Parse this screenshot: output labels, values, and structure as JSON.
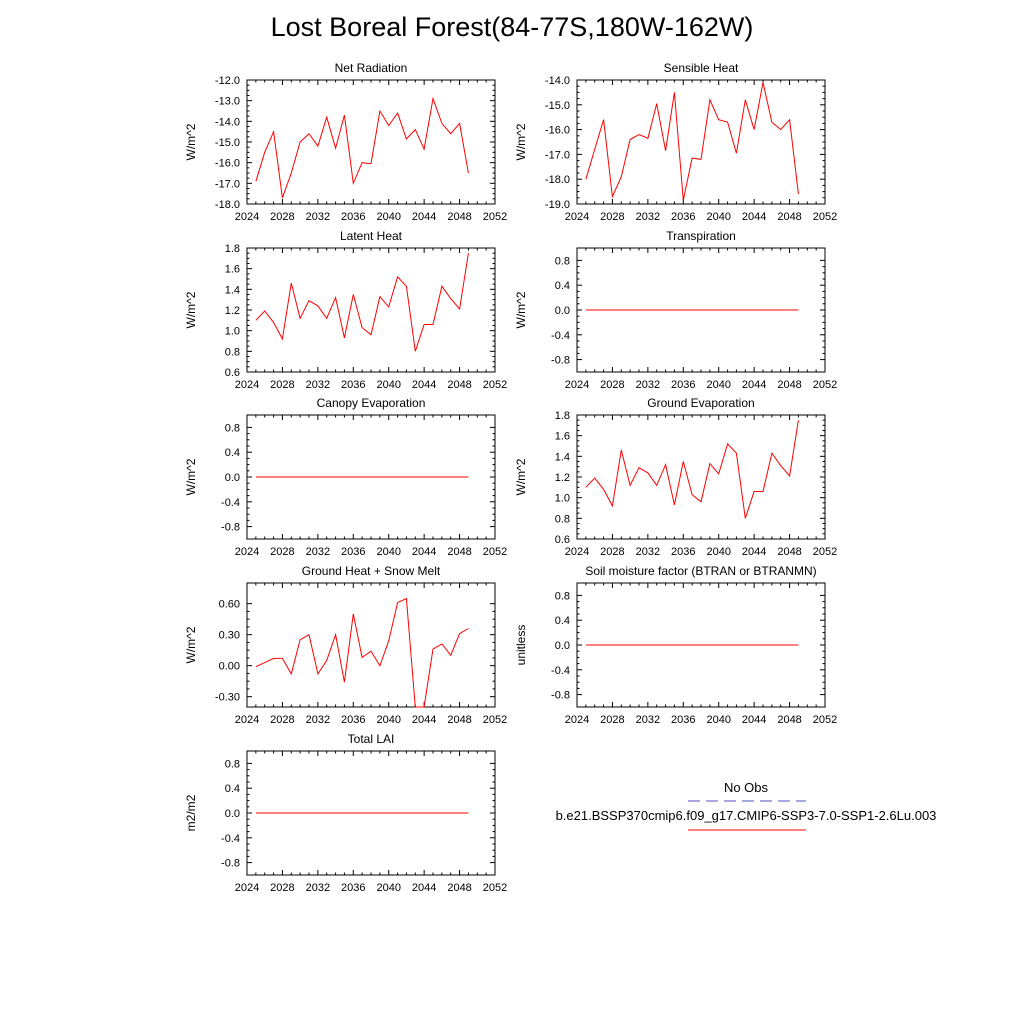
{
  "figure": {
    "title": "Lost Boreal Forest(84-77S,180W-162W)"
  },
  "legend": {
    "obs_label": "No Obs",
    "case_label": "b.e21.BSSP370cmip6.f09_g17.CMIP6-SSP3-7.0-SSP1-2.6Lu.003",
    "obs_color": "#5050c0",
    "case_color": "#ff0000"
  },
  "chart_data": [
    {
      "type": "line",
      "title": "Net Radiation",
      "ylabel": "W/m^2",
      "xlim": [
        2024,
        2052
      ],
      "xticks": [
        2024,
        2028,
        2032,
        2036,
        2040,
        2044,
        2048,
        2052
      ],
      "ylim": [
        -18.0,
        -12.0
      ],
      "yticks": [
        -18.0,
        -17.0,
        -16.0,
        -15.0,
        -14.0,
        -13.0,
        -12.0
      ],
      "ytick_labels": [
        "-18.0",
        "-17.0",
        "-16.0",
        "-15.0",
        "-14.0",
        "-13.0",
        "-12.0"
      ],
      "x": [
        2025,
        2026,
        2027,
        2028,
        2029,
        2030,
        2031,
        2032,
        2033,
        2034,
        2035,
        2036,
        2037,
        2038,
        2039,
        2040,
        2041,
        2042,
        2043,
        2044,
        2045,
        2046,
        2047,
        2048,
        2049
      ],
      "values": [
        -16.9,
        -15.5,
        -14.5,
        -17.7,
        -16.5,
        -15.0,
        -14.6,
        -15.2,
        -13.8,
        -15.3,
        -13.7,
        -17.0,
        -16.0,
        -16.05,
        -13.5,
        -14.2,
        -13.6,
        -14.85,
        -14.4,
        -15.35,
        -12.9,
        -14.1,
        -14.6,
        -14.1,
        -16.5
      ],
      "color": "#ff0000"
    },
    {
      "type": "line",
      "title": "Sensible Heat",
      "ylabel": "W/m^2",
      "xlim": [
        2024,
        2052
      ],
      "xticks": [
        2024,
        2028,
        2032,
        2036,
        2040,
        2044,
        2048,
        2052
      ],
      "ylim": [
        -19.0,
        -14.0
      ],
      "yticks": [
        -19.0,
        -18.0,
        -17.0,
        -16.0,
        -15.0,
        -14.0
      ],
      "ytick_labels": [
        "-19.0",
        "-18.0",
        "-17.0",
        "-16.0",
        "-15.0",
        "-14.0"
      ],
      "x": [
        2025,
        2026,
        2027,
        2028,
        2029,
        2030,
        2031,
        2032,
        2033,
        2034,
        2035,
        2036,
        2037,
        2038,
        2039,
        2040,
        2041,
        2042,
        2043,
        2044,
        2045,
        2046,
        2047,
        2048,
        2049
      ],
      "values": [
        -18.0,
        -16.8,
        -15.6,
        -18.7,
        -17.9,
        -16.4,
        -16.2,
        -16.35,
        -14.95,
        -16.85,
        -14.5,
        -18.85,
        -17.15,
        -17.2,
        -14.8,
        -15.6,
        -15.7,
        -16.95,
        -14.8,
        -16.0,
        -14.1,
        -15.7,
        -16.0,
        -15.6,
        -18.6
      ],
      "color": "#ff0000"
    },
    {
      "type": "line",
      "title": "Latent Heat",
      "ylabel": "W/m^2",
      "xlim": [
        2024,
        2052
      ],
      "xticks": [
        2024,
        2028,
        2032,
        2036,
        2040,
        2044,
        2048,
        2052
      ],
      "ylim": [
        0.6,
        1.8
      ],
      "yticks": [
        0.6,
        0.8,
        1.0,
        1.2,
        1.4,
        1.6,
        1.8
      ],
      "ytick_labels": [
        "0.6",
        "0.8",
        "1.0",
        "1.2",
        "1.4",
        "1.6",
        "1.8"
      ],
      "x": [
        2025,
        2026,
        2027,
        2028,
        2029,
        2030,
        2031,
        2032,
        2033,
        2034,
        2035,
        2036,
        2037,
        2038,
        2039,
        2040,
        2041,
        2042,
        2043,
        2044,
        2045,
        2046,
        2047,
        2048,
        2049
      ],
      "values": [
        1.1,
        1.19,
        1.08,
        0.92,
        1.46,
        1.12,
        1.29,
        1.24,
        1.12,
        1.32,
        0.93,
        1.35,
        1.03,
        0.96,
        1.33,
        1.23,
        1.52,
        1.43,
        0.8,
        1.06,
        1.06,
        1.43,
        1.31,
        1.21,
        1.75
      ],
      "color": "#ff0000"
    },
    {
      "type": "line",
      "title": "Transpiration",
      "ylabel": "W/m^2",
      "xlim": [
        2024,
        2052
      ],
      "xticks": [
        2024,
        2028,
        2032,
        2036,
        2040,
        2044,
        2048,
        2052
      ],
      "ylim": [
        -1.0,
        1.0
      ],
      "yticks": [
        -0.8,
        -0.4,
        0.0,
        0.4,
        0.8
      ],
      "ytick_labels": [
        "-0.8",
        "-0.4",
        "0.0",
        "0.4",
        "0.8"
      ],
      "x": [
        2025,
        2026,
        2027,
        2028,
        2029,
        2030,
        2031,
        2032,
        2033,
        2034,
        2035,
        2036,
        2037,
        2038,
        2039,
        2040,
        2041,
        2042,
        2043,
        2044,
        2045,
        2046,
        2047,
        2048,
        2049
      ],
      "values": [
        0,
        0,
        0,
        0,
        0,
        0,
        0,
        0,
        0,
        0,
        0,
        0,
        0,
        0,
        0,
        0,
        0,
        0,
        0,
        0,
        0,
        0,
        0,
        0,
        0
      ],
      "color": "#ff0000"
    },
    {
      "type": "line",
      "title": "Canopy Evaporation",
      "ylabel": "W/m^2",
      "xlim": [
        2024,
        2052
      ],
      "xticks": [
        2024,
        2028,
        2032,
        2036,
        2040,
        2044,
        2048,
        2052
      ],
      "ylim": [
        -1.0,
        1.0
      ],
      "yticks": [
        -0.8,
        -0.4,
        0.0,
        0.4,
        0.8
      ],
      "ytick_labels": [
        "-0.8",
        "-0.4",
        "0.0",
        "0.4",
        "0.8"
      ],
      "x": [
        2025,
        2026,
        2027,
        2028,
        2029,
        2030,
        2031,
        2032,
        2033,
        2034,
        2035,
        2036,
        2037,
        2038,
        2039,
        2040,
        2041,
        2042,
        2043,
        2044,
        2045,
        2046,
        2047,
        2048,
        2049
      ],
      "values": [
        0,
        0,
        0,
        0,
        0,
        0,
        0,
        0,
        0,
        0,
        0,
        0,
        0,
        0,
        0,
        0,
        0,
        0,
        0,
        0,
        0,
        0,
        0,
        0,
        0
      ],
      "color": "#ff0000"
    },
    {
      "type": "line",
      "title": "Ground Evaporation",
      "ylabel": "W/m^2",
      "xlim": [
        2024,
        2052
      ],
      "xticks": [
        2024,
        2028,
        2032,
        2036,
        2040,
        2044,
        2048,
        2052
      ],
      "ylim": [
        0.6,
        1.8
      ],
      "yticks": [
        0.6,
        0.8,
        1.0,
        1.2,
        1.4,
        1.6,
        1.8
      ],
      "ytick_labels": [
        "0.6",
        "0.8",
        "1.0",
        "1.2",
        "1.4",
        "1.6",
        "1.8"
      ],
      "x": [
        2025,
        2026,
        2027,
        2028,
        2029,
        2030,
        2031,
        2032,
        2033,
        2034,
        2035,
        2036,
        2037,
        2038,
        2039,
        2040,
        2041,
        2042,
        2043,
        2044,
        2045,
        2046,
        2047,
        2048,
        2049
      ],
      "values": [
        1.1,
        1.19,
        1.08,
        0.92,
        1.46,
        1.12,
        1.29,
        1.24,
        1.12,
        1.32,
        0.93,
        1.35,
        1.03,
        0.96,
        1.33,
        1.23,
        1.52,
        1.43,
        0.8,
        1.06,
        1.06,
        1.43,
        1.31,
        1.21,
        1.75
      ],
      "color": "#ff0000"
    },
    {
      "type": "line",
      "title": "Ground Heat + Snow Melt",
      "ylabel": "W/m^2",
      "xlim": [
        2024,
        2052
      ],
      "xticks": [
        2024,
        2028,
        2032,
        2036,
        2040,
        2044,
        2048,
        2052
      ],
      "ylim": [
        -0.4,
        0.8
      ],
      "yticks": [
        -0.3,
        0.0,
        0.3,
        0.6
      ],
      "ytick_labels": [
        "-0.30",
        "0.00",
        "0.30",
        "0.60"
      ],
      "x": [
        2025,
        2026,
        2027,
        2028,
        2029,
        2030,
        2031,
        2032,
        2033,
        2034,
        2035,
        2036,
        2037,
        2038,
        2039,
        2040,
        2041,
        2042,
        2043,
        2044,
        2045,
        2046,
        2047,
        2048,
        2049
      ],
      "values": [
        -0.01,
        0.03,
        0.07,
        0.07,
        -0.08,
        0.25,
        0.3,
        -0.08,
        0.05,
        0.3,
        -0.16,
        0.5,
        0.08,
        0.14,
        0.0,
        0.24,
        0.61,
        0.65,
        -0.4,
        -0.4,
        0.16,
        0.21,
        0.1,
        0.31,
        0.36
      ],
      "color": "#ff0000"
    },
    {
      "type": "line",
      "title": "Soil moisture factor (BTRAN or BTRANMN)",
      "ylabel": "unitless",
      "xlim": [
        2024,
        2052
      ],
      "xticks": [
        2024,
        2028,
        2032,
        2036,
        2040,
        2044,
        2048,
        2052
      ],
      "ylim": [
        -1.0,
        1.0
      ],
      "yticks": [
        -0.8,
        -0.4,
        0.0,
        0.4,
        0.8
      ],
      "ytick_labels": [
        "-0.8",
        "-0.4",
        "0.0",
        "0.4",
        "0.8"
      ],
      "x": [
        2025,
        2026,
        2027,
        2028,
        2029,
        2030,
        2031,
        2032,
        2033,
        2034,
        2035,
        2036,
        2037,
        2038,
        2039,
        2040,
        2041,
        2042,
        2043,
        2044,
        2045,
        2046,
        2047,
        2048,
        2049
      ],
      "values": [
        0,
        0,
        0,
        0,
        0,
        0,
        0,
        0,
        0,
        0,
        0,
        0,
        0,
        0,
        0,
        0,
        0,
        0,
        0,
        0,
        0,
        0,
        0,
        0,
        0
      ],
      "color": "#ff0000"
    },
    {
      "type": "line",
      "title": "Total LAI",
      "ylabel": "m2/m2",
      "xlim": [
        2024,
        2052
      ],
      "xticks": [
        2024,
        2028,
        2032,
        2036,
        2040,
        2044,
        2048,
        2052
      ],
      "ylim": [
        -1.0,
        1.0
      ],
      "yticks": [
        -0.8,
        -0.4,
        0.0,
        0.4,
        0.8
      ],
      "ytick_labels": [
        "-0.8",
        "-0.4",
        "0.0",
        "0.4",
        "0.8"
      ],
      "x": [
        2025,
        2026,
        2027,
        2028,
        2029,
        2030,
        2031,
        2032,
        2033,
        2034,
        2035,
        2036,
        2037,
        2038,
        2039,
        2040,
        2041,
        2042,
        2043,
        2044,
        2045,
        2046,
        2047,
        2048,
        2049
      ],
      "values": [
        0,
        0,
        0,
        0,
        0,
        0,
        0,
        0,
        0,
        0,
        0,
        0,
        0,
        0,
        0,
        0,
        0,
        0,
        0,
        0,
        0,
        0,
        0,
        0,
        0
      ],
      "color": "#ff0000"
    }
  ]
}
